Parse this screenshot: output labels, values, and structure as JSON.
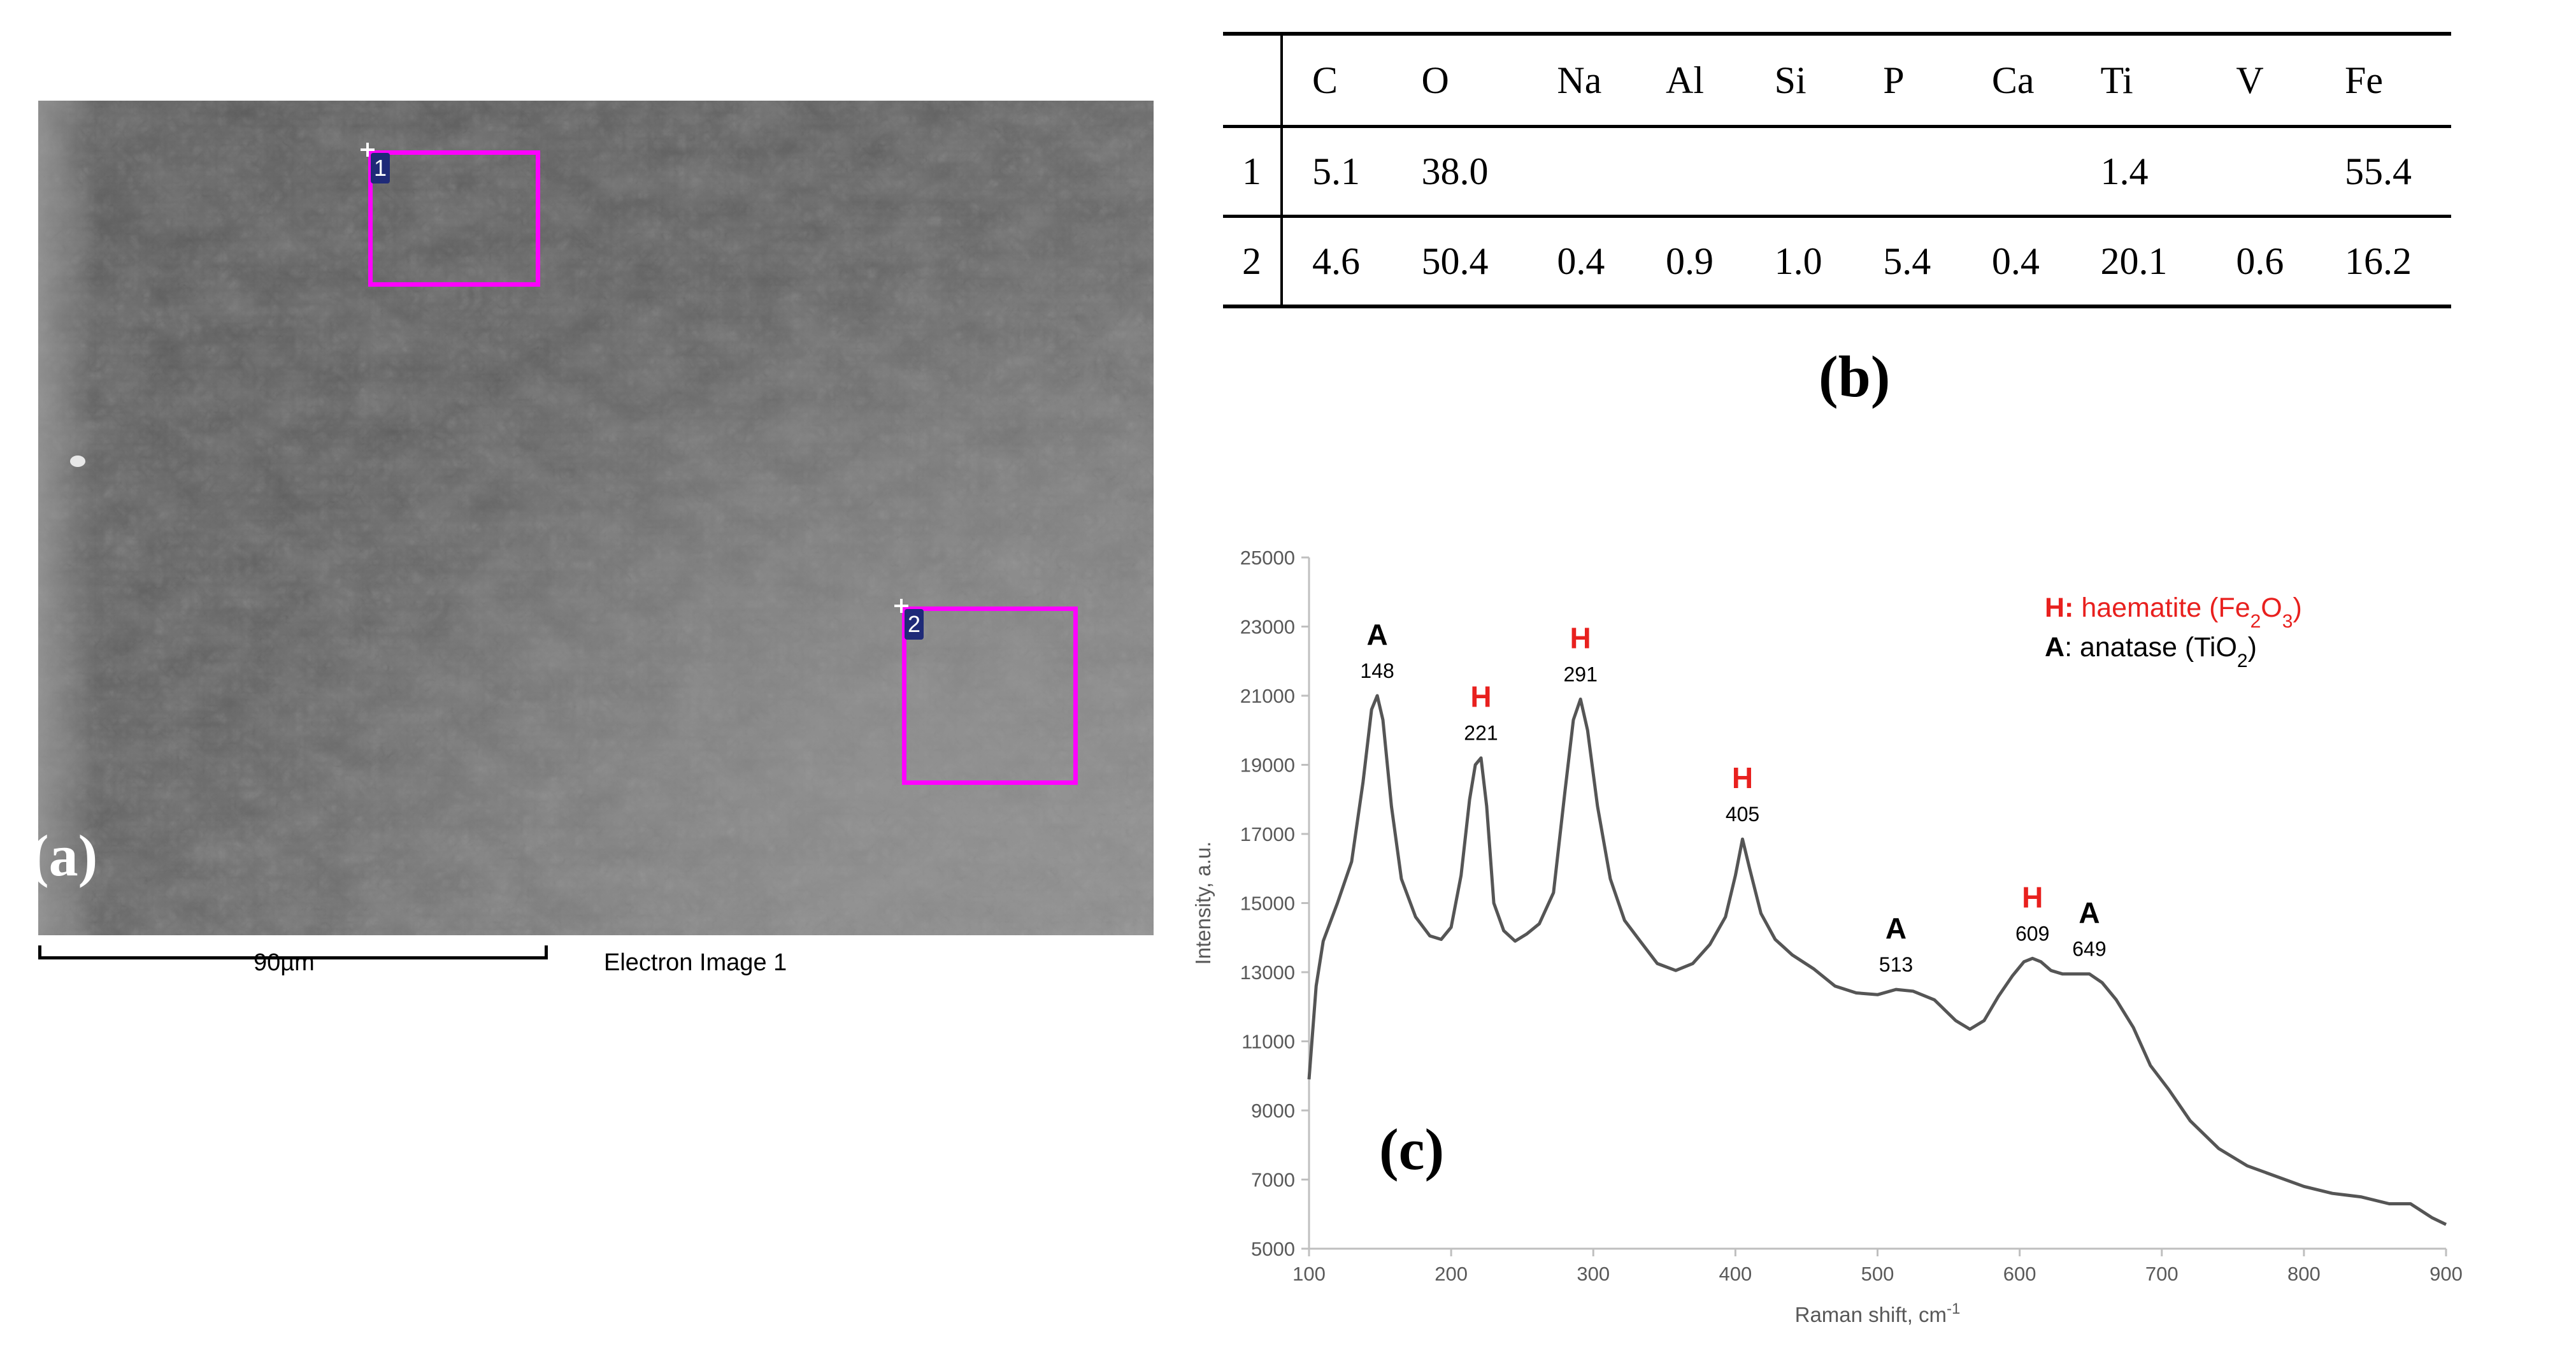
{
  "panel_a": {
    "label": "(a)",
    "rois": [
      {
        "id": "1"
      },
      {
        "id": "2"
      }
    ],
    "scale_bar_label": "90µm",
    "image_caption": "Electron Image 1"
  },
  "panel_b": {
    "label": "(b)",
    "columns": [
      "",
      "C",
      "O",
      "Na",
      "Al",
      "Si",
      "P",
      "Ca",
      "Ti",
      "V",
      "Fe"
    ],
    "rows": [
      [
        "1",
        "5.1",
        "38.0",
        "",
        "",
        "",
        "",
        "",
        "1.4",
        "",
        "55.4"
      ],
      [
        "2",
        "4.6",
        "50.4",
        "0.4",
        "0.9",
        "1.0",
        "5.4",
        "0.4",
        "20.1",
        "0.6",
        "16.2"
      ]
    ]
  },
  "panel_c": {
    "label": "(c)"
  },
  "chart_data": {
    "type": "line",
    "title": "",
    "xlabel": "Raman shift, cm",
    "xlabel_superscript": "-1",
    "ylabel": "Intensity, a.u.",
    "xlim": [
      100,
      900
    ],
    "ylim": [
      5000,
      25000
    ],
    "x_ticks": [
      100,
      200,
      300,
      400,
      500,
      600,
      700,
      800,
      900
    ],
    "y_ticks": [
      5000,
      7000,
      9000,
      11000,
      13000,
      15000,
      17000,
      19000,
      21000,
      23000,
      25000
    ],
    "grid": false,
    "series": [
      {
        "color": "#555555",
        "x": [
          100,
          105,
          110,
          120,
          130,
          138,
          144,
          148,
          152,
          158,
          165,
          175,
          185,
          193,
          200,
          207,
          213,
          217,
          221,
          225,
          230,
          237,
          245,
          253,
          262,
          272,
          280,
          286,
          291,
          296,
          303,
          312,
          322,
          333,
          345,
          358,
          370,
          382,
          393,
          400,
          405,
          410,
          418,
          428,
          440,
          455,
          470,
          485,
          500,
          513,
          525,
          540,
          555,
          565,
          575,
          585,
          595,
          603,
          609,
          615,
          622,
          630,
          640,
          649,
          658,
          668,
          680,
          692,
          705,
          720,
          740,
          760,
          780,
          800,
          820,
          840,
          860,
          875,
          890,
          900
        ],
        "y": [
          9900,
          12600,
          13900,
          15000,
          16200,
          18500,
          20600,
          21000,
          20300,
          17800,
          15700,
          14600,
          14050,
          13950,
          14300,
          15800,
          18000,
          19000,
          19200,
          17800,
          15000,
          14200,
          13900,
          14100,
          14400,
          15300,
          18200,
          20300,
          20900,
          20000,
          17800,
          15700,
          14500,
          13900,
          13250,
          13050,
          13250,
          13800,
          14600,
          15800,
          16850,
          16000,
          14700,
          13950,
          13500,
          13100,
          12600,
          12400,
          12350,
          12500,
          12450,
          12200,
          11600,
          11350,
          11600,
          12300,
          12900,
          13300,
          13400,
          13300,
          13050,
          12950,
          12950,
          12950,
          12700,
          12200,
          11400,
          10300,
          9600,
          8700,
          7900,
          7400,
          7100,
          6800,
          6600,
          6500,
          6300,
          6300,
          5900,
          5700
        ]
      }
    ],
    "peaks": [
      {
        "x": 148,
        "label": "A",
        "value": "148",
        "y": 21000
      },
      {
        "x": 221,
        "label": "H",
        "value": "221",
        "y": 19200
      },
      {
        "x": 291,
        "label": "H",
        "value": "291",
        "y": 20900
      },
      {
        "x": 405,
        "label": "H",
        "value": "405",
        "y": 16850
      },
      {
        "x": 513,
        "label": "A",
        "value": "513",
        "y": 12500
      },
      {
        "x": 609,
        "label": "H",
        "value": "609",
        "y": 13400
      },
      {
        "x": 649,
        "label": "A",
        "value": "649",
        "y": 12950
      }
    ],
    "legend": [
      {
        "key": "H:",
        "text": " haematite (Fe",
        "sub": "2",
        "text2": "O",
        "sub2": "3",
        "tail": ")",
        "color": "#e8201e"
      },
      {
        "key": "A",
        "text": ": anatase (TiO",
        "sub": "2",
        "text2": "",
        "sub2": "",
        "tail": ")",
        "color": "#000000"
      }
    ],
    "legend_position": "top-right",
    "colors": {
      "H": "#e8201e",
      "A": "#000000",
      "line": "#555555",
      "axis": "#bfbfbf"
    }
  }
}
